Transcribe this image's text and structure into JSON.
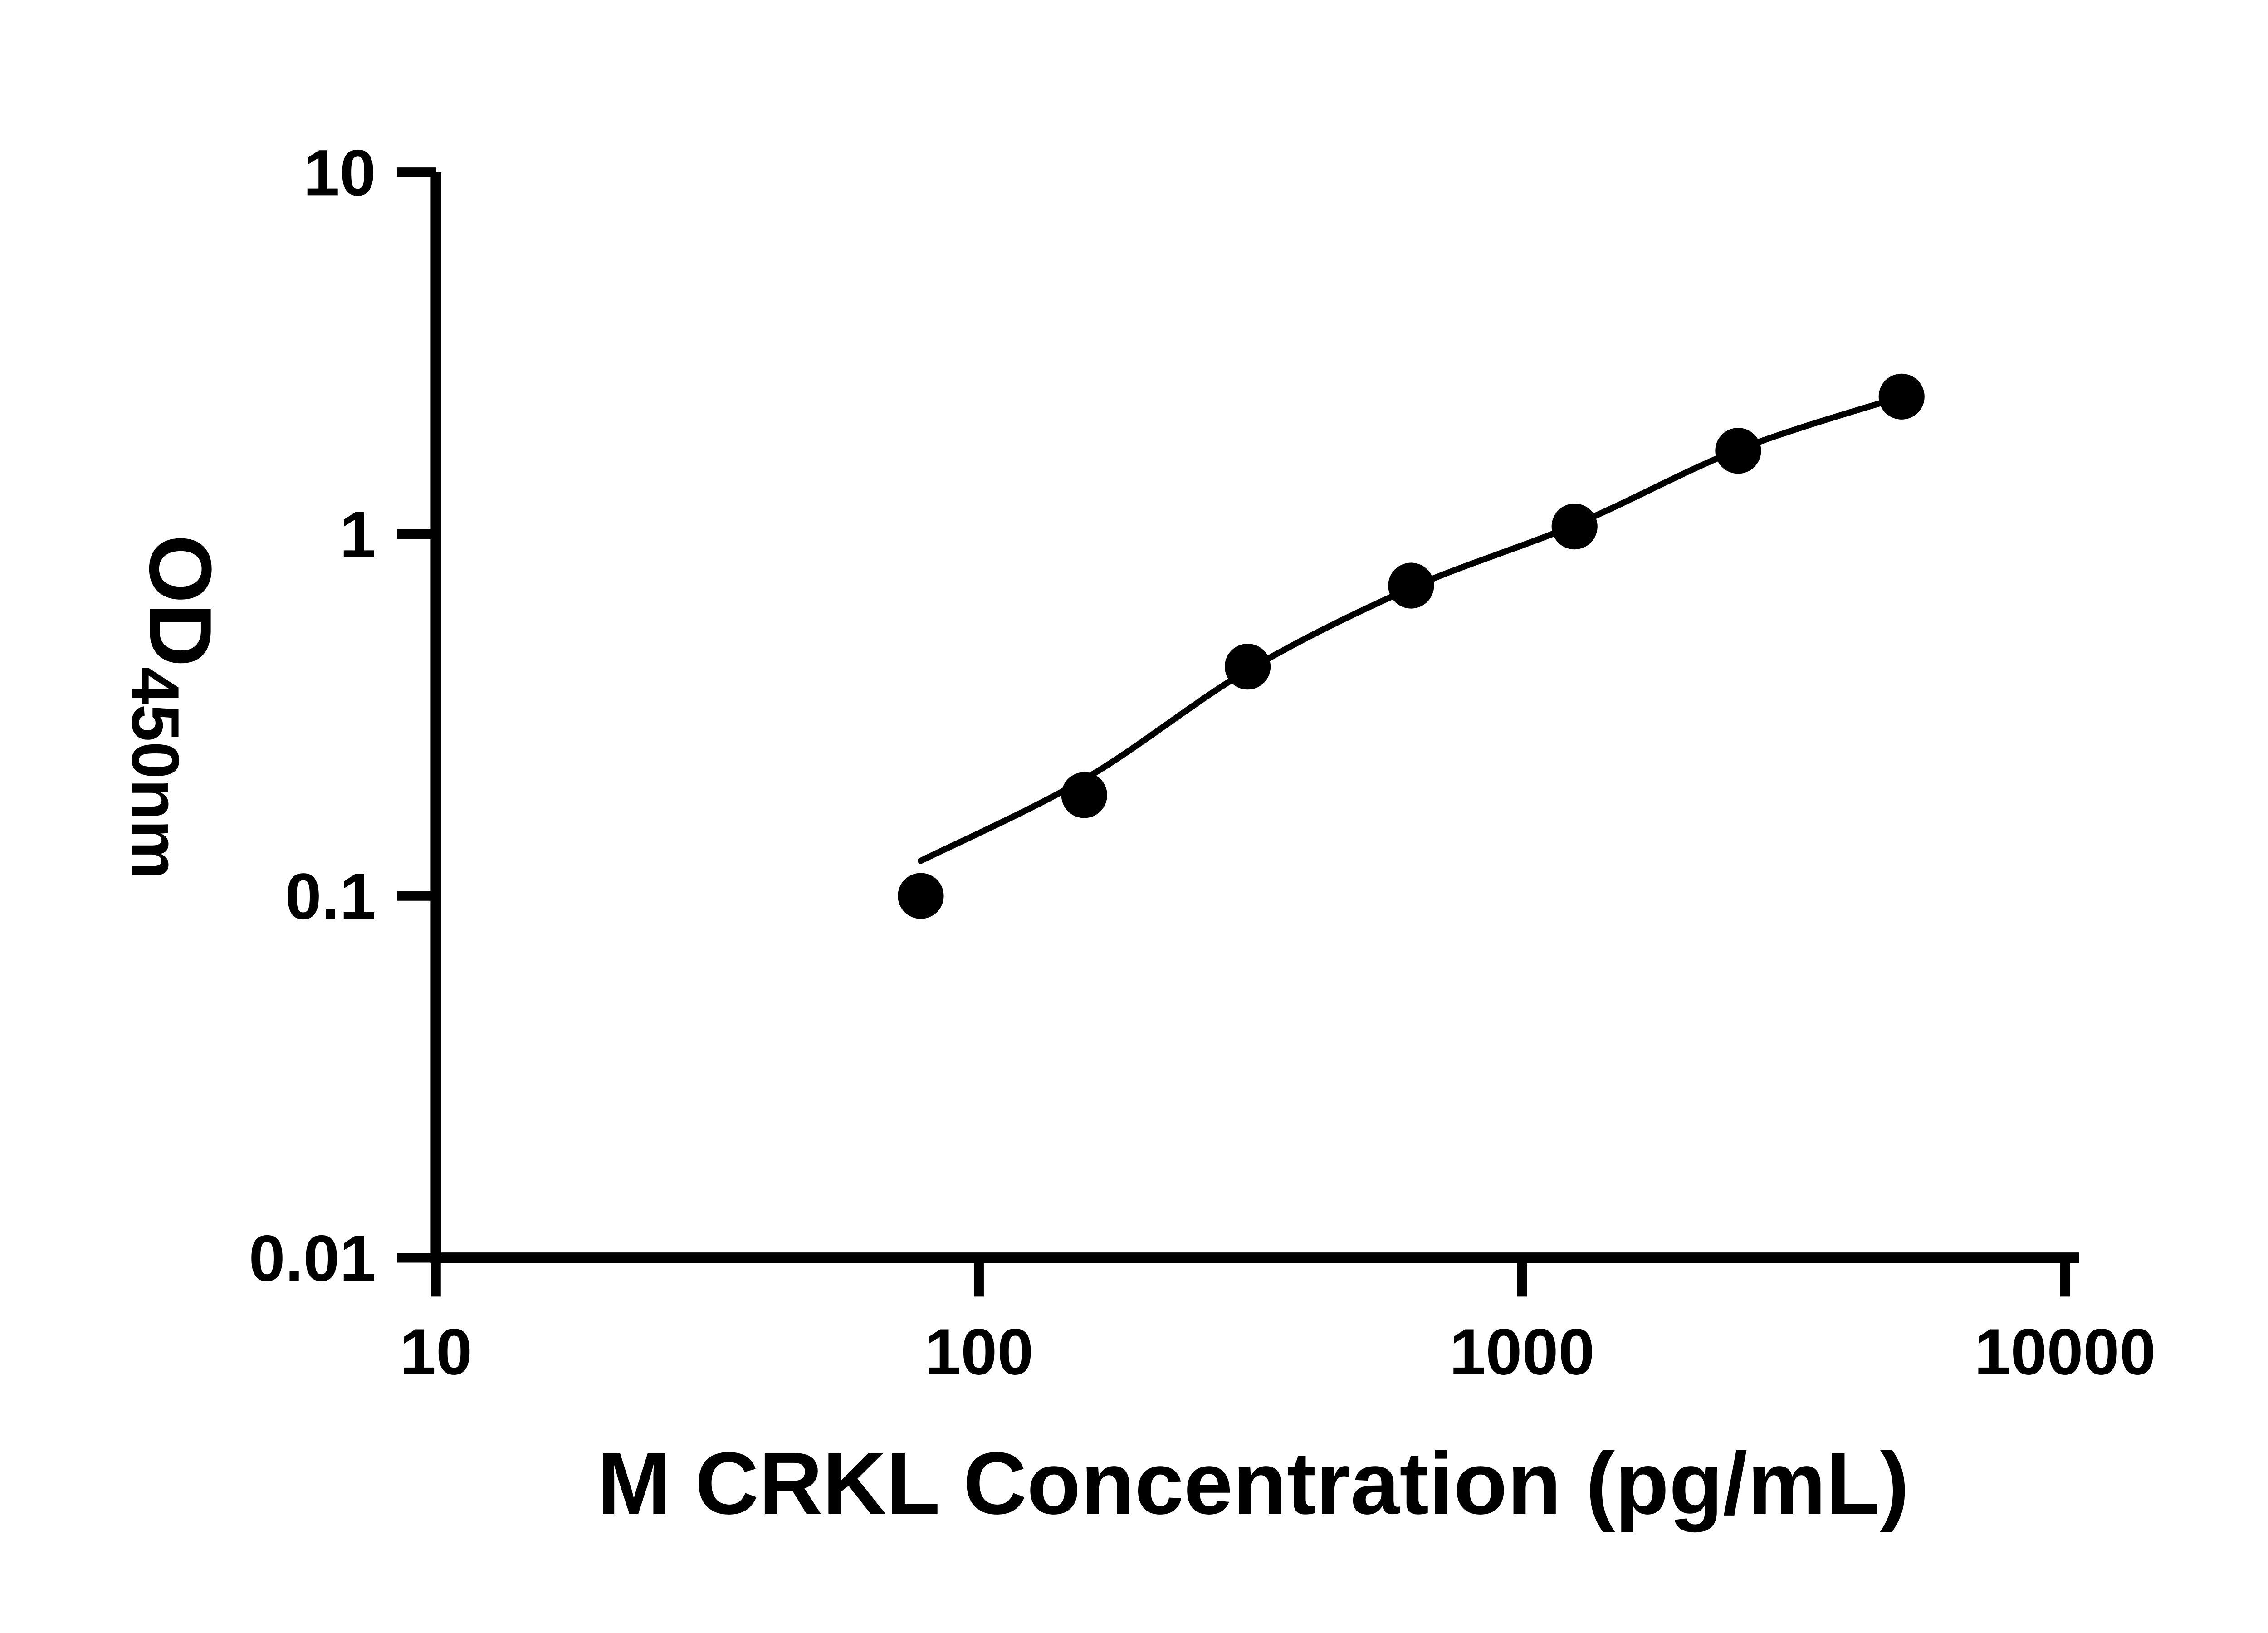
{
  "figure": {
    "background_color": "#ffffff",
    "ink_color": "#000000"
  },
  "chart_data": {
    "type": "scatter",
    "title": "",
    "xlabel": "M CRKL Concentration (pg/mL)",
    "ylabel_main": "OD",
    "ylabel_subscript": "450nm",
    "x_scale": "log10",
    "y_scale": "log10",
    "xlim": [
      10,
      10000
    ],
    "ylim": [
      0.01,
      10
    ],
    "x_ticks": [
      10,
      100,
      1000,
      10000
    ],
    "x_tick_labels": [
      "10",
      "100",
      "1000",
      "10000"
    ],
    "y_ticks": [
      10,
      1,
      0.1,
      0.01
    ],
    "y_tick_labels": [
      "10",
      "1",
      "0.1",
      "0.01"
    ],
    "grid": false,
    "legend": false,
    "series": [
      {
        "name": "standard-points",
        "type": "scatter",
        "marker": "filled-circle",
        "color": "#000000",
        "x": [
          78.125,
          156.25,
          312.5,
          625,
          1250,
          2500,
          5000
        ],
        "y": [
          0.1,
          0.19,
          0.43,
          0.72,
          1.05,
          1.7,
          2.4
        ]
      },
      {
        "name": "fitted-curve",
        "type": "line",
        "color": "#000000",
        "x": [
          78.125,
          156.25,
          312.5,
          625,
          1250,
          2500,
          5000
        ],
        "y": [
          0.125,
          0.21,
          0.42,
          0.71,
          1.06,
          1.71,
          2.4
        ]
      }
    ]
  }
}
